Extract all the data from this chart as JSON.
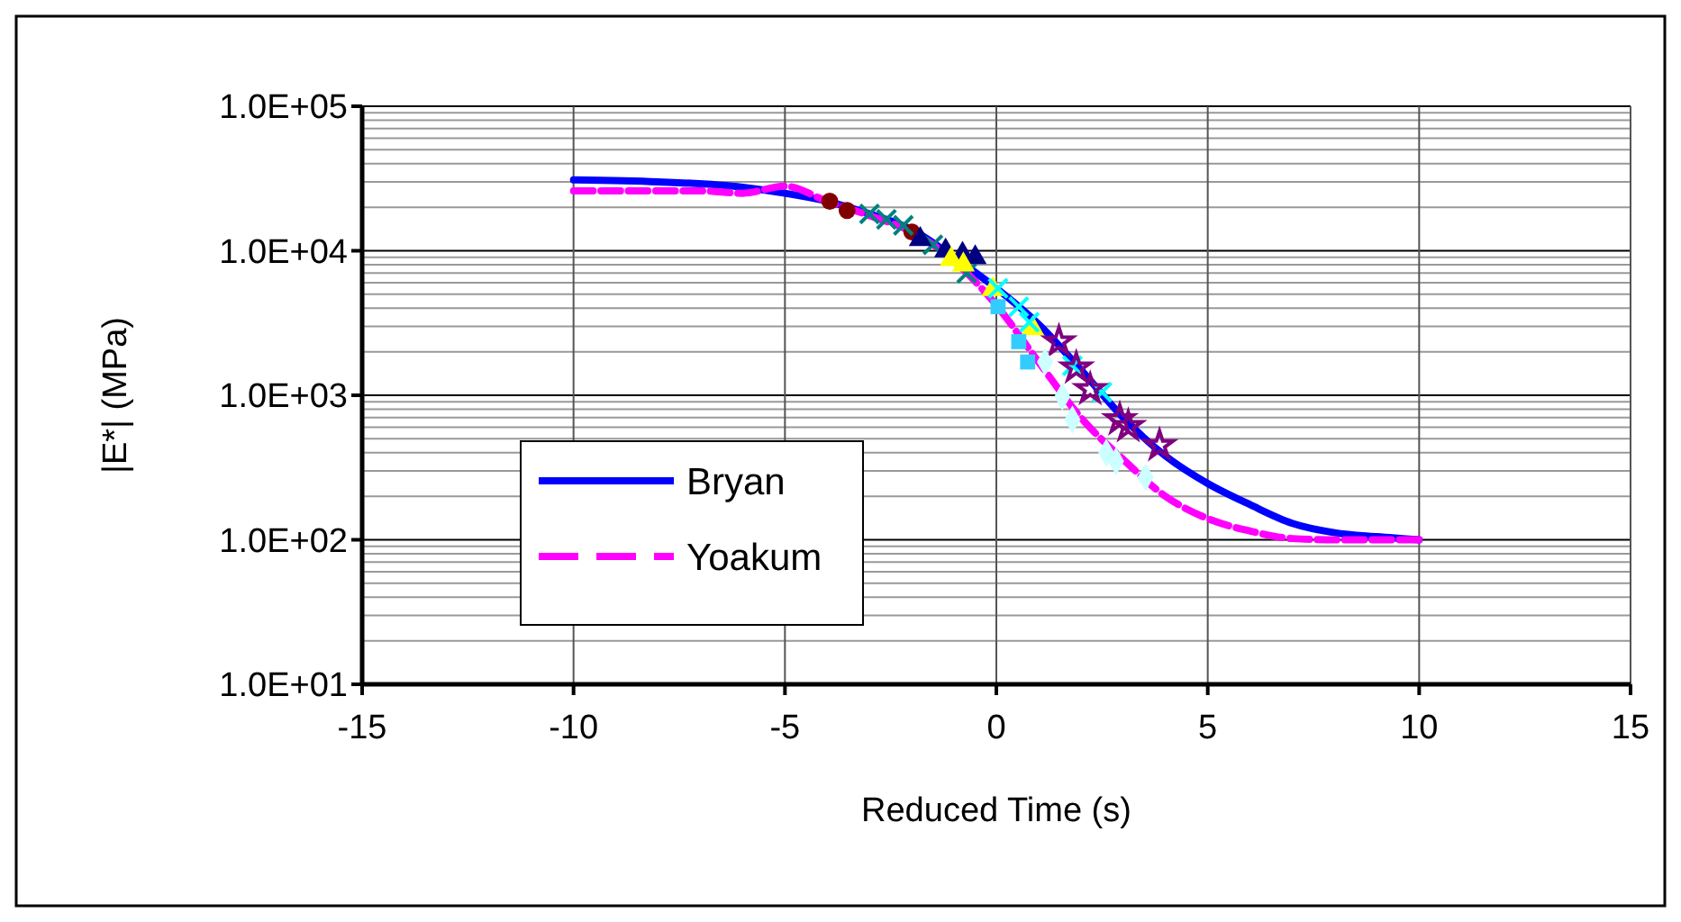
{
  "chart_data": {
    "type": "line",
    "xlabel": "Reduced Time (s)",
    "ylabel": "|E*| (MPa)",
    "log": "y",
    "grid": true,
    "legend": "bottom left",
    "xlim": [
      -15,
      15
    ],
    "xticks": [
      -15,
      -10,
      -5,
      0,
      5,
      10,
      15
    ],
    "ylim": [
      10,
      100000
    ],
    "yticks": [
      {
        "value": 10,
        "label": "1.0E+01"
      },
      {
        "value": 100,
        "label": "1.0E+02"
      },
      {
        "value": 1000,
        "label": "1.0E+03"
      },
      {
        "value": 10000,
        "label": "1.0E+04"
      },
      {
        "value": 100000,
        "label": "1.0E+05"
      }
    ],
    "series": [
      {
        "name": "Bryan",
        "color": "#0000ff",
        "line_style": "solid",
        "x": [
          -10,
          -8,
          -6,
          -5,
          -4,
          -3,
          -2,
          -1,
          0,
          1,
          2,
          3,
          4,
          5,
          6,
          7,
          8,
          9,
          10
        ],
        "values": [
          31000,
          30000,
          27500,
          25000,
          22000,
          18000,
          14000,
          9000,
          5500,
          3100,
          1500,
          700,
          380,
          245,
          175,
          130,
          112,
          105,
          100
        ]
      },
      {
        "name": "Yoakum",
        "color": "#ff00ff",
        "line_style": "dashed",
        "x": [
          -10,
          -7,
          -6,
          -5,
          -4,
          -3,
          -2,
          -1,
          0,
          1,
          2,
          3,
          4,
          5,
          6,
          7,
          8,
          10
        ],
        "values": [
          26000,
          26000,
          25000,
          28000,
          22000,
          17500,
          13500,
          8500,
          4200,
          1700,
          700,
          360,
          200,
          140,
          115,
          102,
          100,
          100
        ]
      },
      {
        "type": "scatter",
        "marker": "circle",
        "color": "#800000",
        "x": [
          -3.94,
          -3.53,
          -2.0
        ],
        "values": [
          22000,
          19000,
          13500
        ]
      },
      {
        "type": "scatter",
        "marker": "cross",
        "color": "#008080",
        "x": [
          -3.0,
          -2.6,
          -2.2,
          -1.5,
          -0.7
        ],
        "values": [
          18000,
          16500,
          15000,
          11000,
          7000
        ]
      },
      {
        "type": "scatter",
        "marker": "triangle",
        "color": "#000080",
        "x": [
          -1.8,
          -1.2,
          -0.8,
          -0.5
        ],
        "values": [
          12000,
          10000,
          9500,
          9000
        ]
      },
      {
        "type": "scatter",
        "marker": "triangle",
        "color": "#ffff00",
        "x": [
          -1.07,
          -0.78,
          -0.08,
          0.86
        ],
        "values": [
          8700,
          8000,
          5400,
          2900
        ]
      },
      {
        "type": "scatter",
        "marker": "cross",
        "color": "#00ffff",
        "x": [
          0.04,
          0.53,
          0.78,
          1.8,
          2.5
        ],
        "values": [
          5500,
          4100,
          3200,
          1600,
          1050
        ]
      },
      {
        "type": "scatter",
        "marker": "star",
        "color": "#800080",
        "x": [
          1.48,
          1.89,
          2.22,
          2.92,
          3.12,
          3.86
        ],
        "values": [
          2350,
          1550,
          1100,
          680,
          610,
          450
        ]
      },
      {
        "type": "scatter",
        "marker": "diamond",
        "color": "#ccffff",
        "x": [
          1.15,
          1.56,
          1.8,
          2.6,
          2.83,
          3.53
        ],
        "values": [
          1700,
          980,
          680,
          400,
          350,
          270
        ]
      },
      {
        "type": "scatter",
        "marker": "square",
        "color": "#33ccff",
        "x": [
          0.04,
          0.53,
          0.74
        ],
        "values": [
          4100,
          2350,
          1700
        ]
      }
    ]
  }
}
